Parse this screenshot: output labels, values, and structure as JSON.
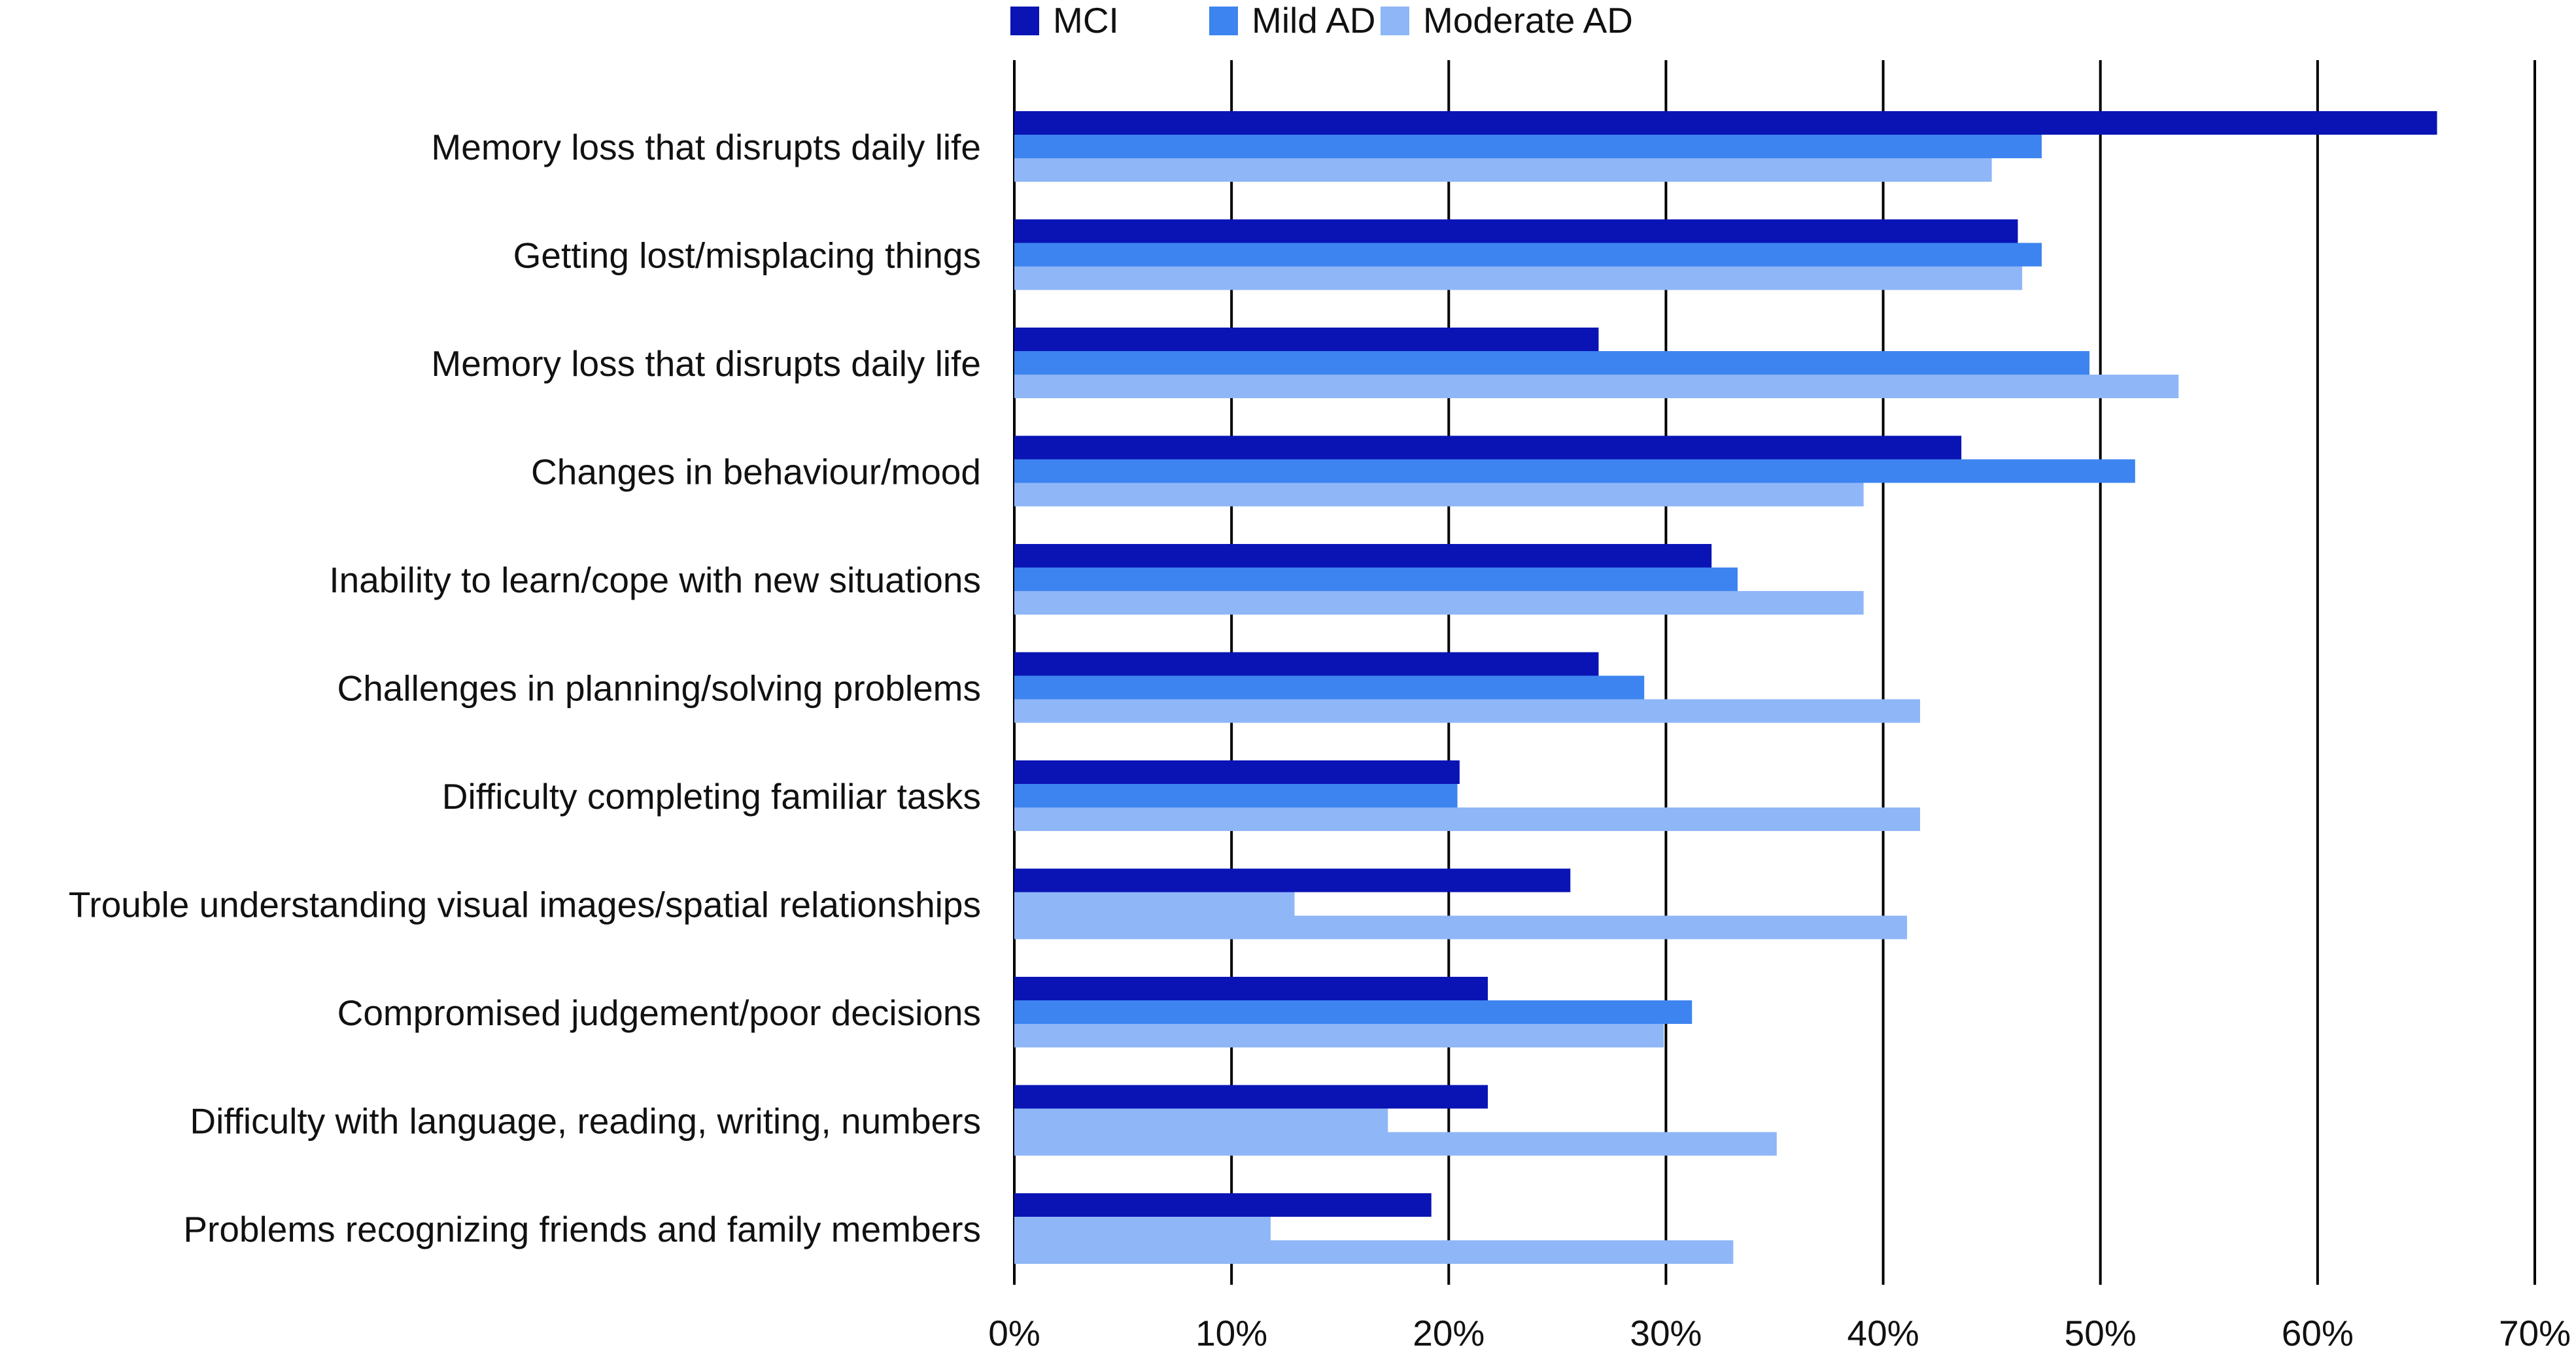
{
  "chart_data": {
    "type": "bar",
    "orientation": "horizontal",
    "title": "",
    "xlabel": "",
    "ylabel": "",
    "xlim": [
      0,
      70
    ],
    "ticks": [
      0,
      10,
      20,
      30,
      40,
      50,
      60,
      70
    ],
    "tick_suffix": "%",
    "grid": true,
    "legend_position": "top",
    "categories": [
      "Memory loss that disrupts daily life",
      "Getting lost/misplacing things",
      "Memory loss that disrupts daily life",
      "Changes in behaviour/mood",
      "Inability to learn/cope with new situations",
      "Challenges in planning/solving problems",
      "Difficulty completing familiar tasks",
      "Trouble understanding visual images/spatial relationships",
      "Compromised judgement/poor decisions",
      "Difficulty with language, reading, writing, numbers",
      "Problems recognizing friends and family members"
    ],
    "series": [
      {
        "name": "MCI",
        "color": "#0a14b4",
        "values": [
          65.5,
          46.2,
          26.9,
          43.6,
          32.1,
          26.9,
          20.5,
          25.6,
          21.8,
          21.8,
          19.2
        ]
      },
      {
        "name": "Mild AD",
        "color": "#3d84f0",
        "colors": [
          "#3d84f0",
          "#3d84f0",
          "#3d84f0",
          "#3d84f0",
          "#3d84f0",
          "#3d84f0",
          "#3d84f0",
          "#8fb6f7",
          "#3d84f0",
          "#8fb6f7",
          "#8fb6f7"
        ],
        "values": [
          47.3,
          47.3,
          49.5,
          51.6,
          33.3,
          29.0,
          20.4,
          12.9,
          31.2,
          17.2,
          11.8
        ]
      },
      {
        "name": "Moderate AD",
        "color": "#8fb6f7",
        "values": [
          45.0,
          46.4,
          53.6,
          39.1,
          39.1,
          41.7,
          41.7,
          41.1,
          29.9,
          35.1,
          33.1
        ]
      }
    ]
  }
}
